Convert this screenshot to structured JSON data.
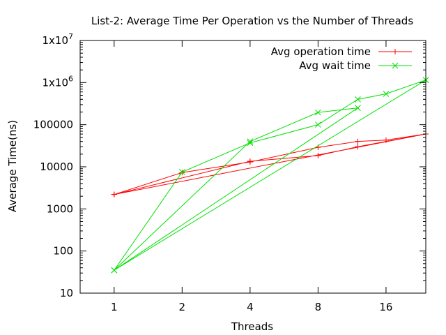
{
  "chart_data": {
    "type": "line",
    "title": "List-2: Average Time Per Operation vs the Number of Threads",
    "xlabel": "Threads",
    "ylabel": "Average Time(ns)",
    "x_scale": "log2",
    "y_scale": "log10",
    "xlim": [
      0.707,
      24
    ],
    "ylim": [
      10,
      10000000
    ],
    "x_ticks": [
      1,
      2,
      4,
      8,
      16
    ],
    "x_tick_labels": [
      "1",
      "2",
      "4",
      "8",
      "16"
    ],
    "y_ticks": [
      10,
      100,
      1000,
      10000,
      100000,
      1000000,
      10000000
    ],
    "y_tick_labels": [
      {
        "base": "10",
        "exp": ""
      },
      {
        "base": "100",
        "exp": ""
      },
      {
        "base": "1000",
        "exp": ""
      },
      {
        "base": "10000",
        "exp": ""
      },
      {
        "base": "100000",
        "exp": ""
      },
      {
        "base": "1x10",
        "exp": "6"
      },
      {
        "base": "1x10",
        "exp": "7"
      }
    ],
    "grid": false,
    "legend_position": "top-right",
    "series": [
      {
        "name": "Avg operation time",
        "color": "#ff0000",
        "marker": "plus",
        "x": [
          1,
          2,
          4,
          8,
          12,
          16,
          24,
          1,
          4,
          8,
          12,
          24
        ],
        "y": [
          2200,
          7300,
          13000,
          29000,
          40000,
          43000,
          60000,
          2200,
          13500,
          18500,
          30000,
          60000
        ]
      },
      {
        "name": "Avg wait time",
        "color": "#00e000",
        "marker": "cross",
        "x": [
          1,
          2,
          4,
          8,
          12,
          16,
          24,
          1,
          4,
          8,
          12,
          1,
          24
        ],
        "y": [
          35,
          7500,
          37000,
          100000,
          400000,
          540000,
          1150000,
          35,
          40000,
          195000,
          250000,
          35,
          1150000
        ]
      }
    ]
  }
}
